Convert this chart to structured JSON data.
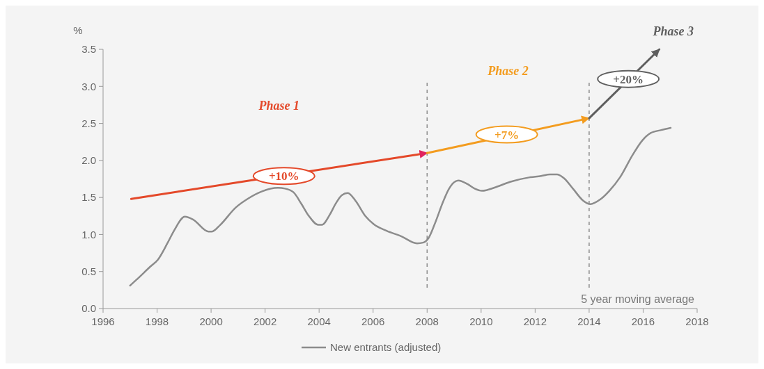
{
  "chart_data": {
    "type": "line",
    "ylabel": "%",
    "xlim": [
      1996,
      2018
    ],
    "xticks": [
      1996,
      1998,
      2000,
      2002,
      2004,
      2006,
      2008,
      2010,
      2012,
      2014,
      2016,
      2018
    ],
    "ylim": [
      0,
      3.5
    ],
    "yticks": [
      {
        "value": 0,
        "label": "0.0"
      },
      0.5,
      {
        "value": 1,
        "label": "1.0"
      },
      1.5,
      {
        "value": 2,
        "label": "2.0"
      },
      2.5,
      {
        "value": 3,
        "label": "3.0"
      },
      3.5
    ],
    "grid": false,
    "legend": "bottom",
    "series": [
      {
        "name": "New entrants (adjusted)",
        "color": "#8c8c8c",
        "x": [
          1997.0,
          1997.24,
          1997.76,
          1998.03,
          1998.38,
          1998.64,
          1999.03,
          1999.34,
          1999.9,
          2000.03,
          2000.34,
          2000.9,
          2001.35,
          2001.87,
          2002.48,
          2002.74,
          2003.05,
          2003.35,
          2003.62,
          2003.97,
          2004.1,
          2004.4,
          2004.62,
          2004.84,
          2005.06,
          2005.36,
          2005.71,
          2006.02,
          2006.5,
          2007.02,
          2007.63,
          2007.85,
          2008.05,
          2008.28,
          2008.59,
          2008.8,
          2008.98,
          2009.15,
          2009.5,
          2009.76,
          2010.03,
          2010.55,
          2011.07,
          2011.77,
          2012.22,
          2012.55,
          2012.81,
          2013.07,
          2013.42,
          2013.77,
          2014.05,
          2014.4,
          2014.75,
          2015.14,
          2015.62,
          2015.97,
          2016.28,
          2016.67,
          2017.02
        ],
        "values": [
          0.31,
          0.39,
          0.57,
          0.66,
          0.88,
          1.06,
          1.24,
          1.2,
          1.04,
          1.04,
          1.13,
          1.36,
          1.48,
          1.58,
          1.63,
          1.62,
          1.57,
          1.41,
          1.25,
          1.13,
          1.13,
          1.27,
          1.42,
          1.53,
          1.56,
          1.45,
          1.25,
          1.14,
          1.05,
          0.98,
          0.88,
          0.89,
          0.95,
          1.14,
          1.44,
          1.61,
          1.7,
          1.73,
          1.68,
          1.62,
          1.59,
          1.64,
          1.71,
          1.77,
          1.79,
          1.81,
          1.81,
          1.76,
          1.61,
          1.46,
          1.41,
          1.47,
          1.59,
          1.77,
          2.08,
          2.27,
          2.37,
          2.41,
          2.44
        ]
      },
      {
        "name": "Phase 1",
        "color": "#e4492a",
        "x": [
          1997.04,
          2008
        ],
        "values": [
          1.48,
          2.1
        ]
      },
      {
        "name": "Phase 2",
        "color": "#f39c1f",
        "x": [
          2008,
          2014
        ],
        "values": [
          2.1,
          2.57
        ]
      },
      {
        "name": "Phase 3",
        "color": "#5f5f5f",
        "x": [
          2014,
          2016.6
        ],
        "values": [
          2.57,
          3.5
        ]
      }
    ],
    "ref_lines": [
      {
        "axis": "x",
        "value": 2008,
        "line_style": "dashed",
        "color": "#8c8c8c"
      },
      {
        "axis": "x",
        "value": 2014,
        "line_style": "dashed",
        "color": "#8c8c8c"
      }
    ],
    "annotations": [
      {
        "text": "+10%",
        "x": 2002.7,
        "y": 1.79
      },
      {
        "text": "+7%",
        "x": 2010.95,
        "y": 2.35
      },
      {
        "text": "+20%",
        "x": 2015.45,
        "y": 3.1
      },
      "5 year moving average"
    ]
  }
}
